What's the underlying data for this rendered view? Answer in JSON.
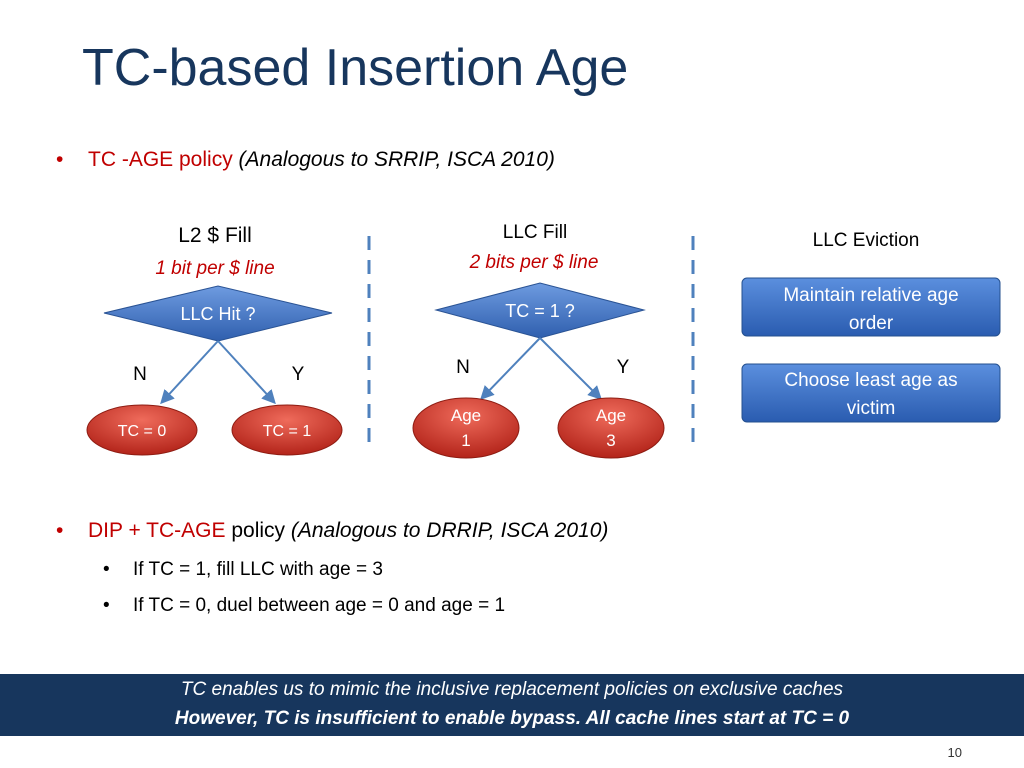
{
  "slide": {
    "title": "TC-based Insertion Age",
    "page_number": "10"
  },
  "bullets": [
    {
      "red_text": "TC -AGE policy",
      "plain_text": "",
      "italic_text": "(Analogous to SRRIP, ISCA 2010)"
    },
    {
      "red_text": "DIP + TC-AGE",
      "plain_text": " policy ",
      "italic_text": "(Analogous to DRRIP, ISCA 2010)"
    }
  ],
  "sub_bullets": [
    "If TC = 1, fill LLC with age = 3",
    "If TC = 0, duel between age = 0 and age = 1"
  ],
  "diagram": {
    "l2_fill": {
      "heading": "L2 $ Fill",
      "subheading": "1 bit per $ line",
      "decision": "LLC Hit ?",
      "no_label": "N",
      "yes_label": "Y",
      "no_outcome": "TC = 0",
      "yes_outcome": "TC = 1"
    },
    "llc_fill": {
      "heading": "LLC Fill",
      "subheading": "2 bits per $ line",
      "decision": "TC = 1 ?",
      "no_label": "N",
      "yes_label": "Y",
      "no_outcome_line1": "Age",
      "no_outcome_line2": "1",
      "yes_outcome_line1": "Age",
      "yes_outcome_line2": "3"
    },
    "llc_eviction": {
      "heading": "LLC Eviction",
      "box1_line1": "Maintain relative age",
      "box1_line2": "order",
      "box2_line1": "Choose least age as",
      "box2_line2": "victim"
    }
  },
  "footer": {
    "line1": "TC enables us to mimic the inclusive replacement policies on exclusive caches",
    "line2": "However, TC is insufficient to enable bypass.  All cache lines start at TC = 0"
  },
  "colors": {
    "title": "#17365d",
    "accent_red": "#c00000",
    "diamond_blue": "#4f81bd",
    "box_blue": "#3a6fc4",
    "ellipse_red": "#c0392b",
    "footer_bg": "#17365d",
    "divider": "#4f81bd"
  }
}
